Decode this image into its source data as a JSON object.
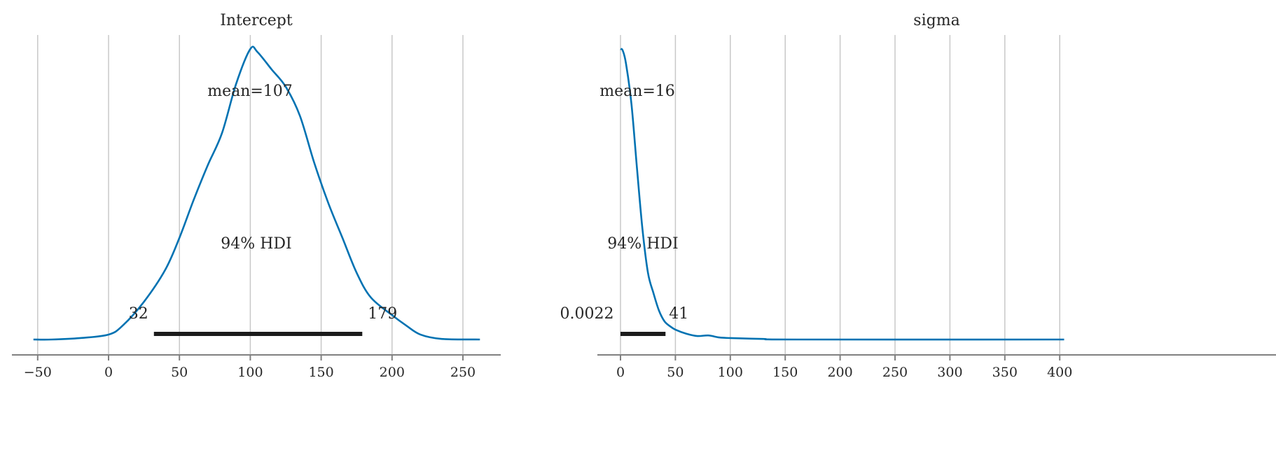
{
  "chart_data": [
    {
      "type": "line",
      "title": "Intercept",
      "xlim": [
        -68,
        277
      ],
      "xticks": [
        -50,
        0,
        50,
        100,
        150,
        200,
        250
      ],
      "xtick_labels": [
        "−50",
        "0",
        "50",
        "100",
        "150",
        "200",
        "250"
      ],
      "grid": "vertical",
      "color": "#0072b2",
      "density_relative": {
        "x": [
          -53,
          -40,
          -20,
          0,
          10,
          25,
          40,
          50,
          60,
          70,
          80,
          90,
          100,
          105,
          115,
          125,
          135,
          145,
          155,
          165,
          175,
          185,
          200,
          210,
          220,
          235,
          262
        ],
        "y": [
          0,
          0,
          0.005,
          0.017,
          0.048,
          0.13,
          0.24,
          0.35,
          0.48,
          0.6,
          0.71,
          0.88,
          1.0,
          0.99,
          0.93,
          0.87,
          0.77,
          0.61,
          0.47,
          0.35,
          0.23,
          0.145,
          0.084,
          0.048,
          0.017,
          0.002,
          0
        ]
      },
      "mean_label": "mean=107",
      "hdi_label": "94% HDI",
      "hdi": [
        32,
        179
      ],
      "hdi_low_label": "32",
      "hdi_high_label": "179"
    },
    {
      "type": "line",
      "title": "sigma",
      "xlim": [
        -21,
        427
      ],
      "xticks": [
        0,
        50,
        100,
        150,
        200,
        250,
        300,
        350,
        400
      ],
      "xtick_labels": [
        "0",
        "50",
        "100",
        "150",
        "200",
        "250",
        "300",
        "350",
        "400"
      ],
      "grid": "vertical",
      "color": "#0072b2",
      "density_relative": {
        "x": [
          0,
          2,
          5,
          10,
          15,
          20,
          25,
          30,
          35,
          40,
          45,
          50,
          60,
          70,
          80,
          90,
          100,
          130,
          160,
          404
        ],
        "y": [
          1.0,
          0.995,
          0.95,
          0.81,
          0.59,
          0.38,
          0.23,
          0.16,
          0.1,
          0.063,
          0.046,
          0.034,
          0.02,
          0.012,
          0.014,
          0.007,
          0.005,
          0.002,
          0,
          0
        ]
      },
      "mean_label": "mean=16",
      "hdi_label": "94% HDI",
      "hdi": [
        0.0022,
        41
      ],
      "hdi_low_label": "0.0022",
      "hdi_high_label": "41"
    }
  ]
}
